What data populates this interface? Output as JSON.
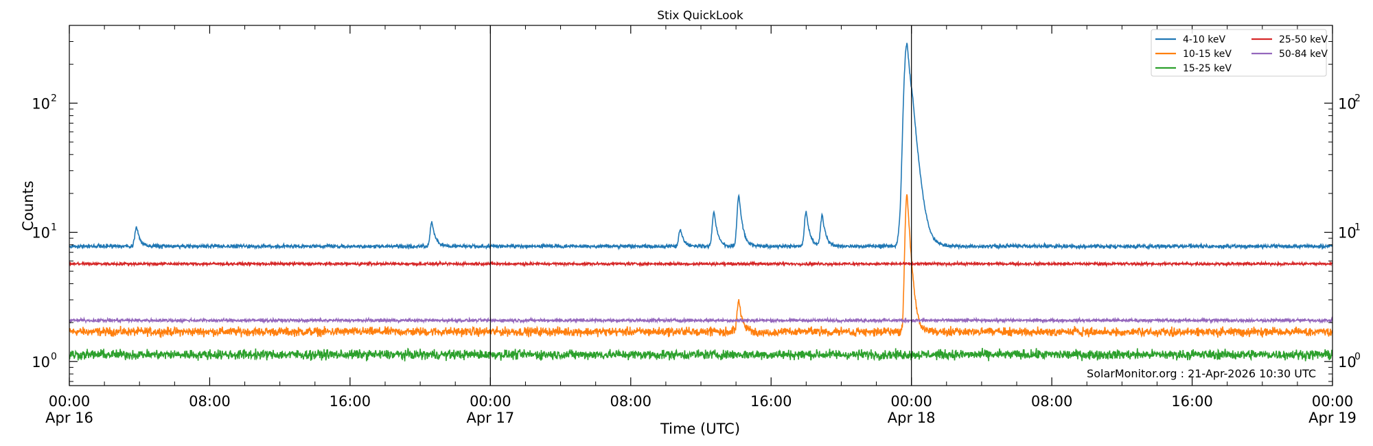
{
  "chart_data": {
    "type": "line",
    "title": "Stix QuickLook",
    "xlabel": "Time (UTC)",
    "ylabel": "Counts",
    "yscale": "log",
    "xlim": [
      "2026-04-16T00:00",
      "2026-04-19T00:00"
    ],
    "ylim": [
      0.65,
      400
    ],
    "x_ticks": [
      {
        "time": "2026-04-16T00:00",
        "label": "00:00",
        "date": "Apr 16"
      },
      {
        "time": "2026-04-16T08:00",
        "label": "08:00",
        "date": ""
      },
      {
        "time": "2026-04-16T16:00",
        "label": "16:00",
        "date": ""
      },
      {
        "time": "2026-04-17T00:00",
        "label": "00:00",
        "date": "Apr 17"
      },
      {
        "time": "2026-04-17T08:00",
        "label": "08:00",
        "date": ""
      },
      {
        "time": "2026-04-17T16:00",
        "label": "16:00",
        "date": ""
      },
      {
        "time": "2026-04-18T00:00",
        "label": "00:00",
        "date": "Apr 18"
      },
      {
        "time": "2026-04-18T08:00",
        "label": "08:00",
        "date": ""
      },
      {
        "time": "2026-04-18T16:00",
        "label": "16:00",
        "date": ""
      },
      {
        "time": "2026-04-19T00:00",
        "label": "00:00",
        "date": "Apr 19"
      }
    ],
    "y_ticks": [
      {
        "value": 1,
        "base": "10",
        "exp": "0"
      },
      {
        "value": 10,
        "base": "10",
        "exp": "1"
      },
      {
        "value": 100,
        "base": "10",
        "exp": "2"
      }
    ],
    "vlines": [
      "2026-04-17T00:00",
      "2026-04-18T00:00"
    ],
    "legend": {
      "position": "top-right",
      "columns": 2
    },
    "series": [
      {
        "name": "4-10 keV",
        "color": "#1f77b4",
        "baseline": 7.8,
        "peaks": [
          {
            "time": "2026-04-16T03:50",
            "value": 11
          },
          {
            "time": "2026-04-16T20:40",
            "value": 12
          },
          {
            "time": "2026-04-17T10:50",
            "value": 10.5
          },
          {
            "time": "2026-04-17T12:45",
            "value": 14.5
          },
          {
            "time": "2026-04-17T14:10",
            "value": 19.5
          },
          {
            "time": "2026-04-17T18:00",
            "value": 14.5
          },
          {
            "time": "2026-04-17T18:55",
            "value": 13.5
          },
          {
            "time": "2026-04-17T23:20",
            "value": 10
          },
          {
            "time": "2026-04-17T23:45",
            "value": 290
          },
          {
            "time": "2026-04-18T00:05",
            "value": 22
          }
        ]
      },
      {
        "name": "10-15 keV",
        "color": "#ff7f0e",
        "baseline": 1.7,
        "peaks": [
          {
            "time": "2026-04-17T14:10",
            "value": 3.0
          },
          {
            "time": "2026-04-17T23:45",
            "value": 20
          }
        ]
      },
      {
        "name": "15-25 keV",
        "color": "#2ca02c",
        "baseline": 1.13,
        "peaks": []
      },
      {
        "name": "25-50 keV",
        "color": "#d62728",
        "baseline": 5.7,
        "peaks": []
      },
      {
        "name": "50-84 keV",
        "color": "#9467bd",
        "baseline": 2.08,
        "peaks": []
      }
    ],
    "annotation": "SolarMonitor.org : 21-Apr-2026 10:30 UTC"
  }
}
